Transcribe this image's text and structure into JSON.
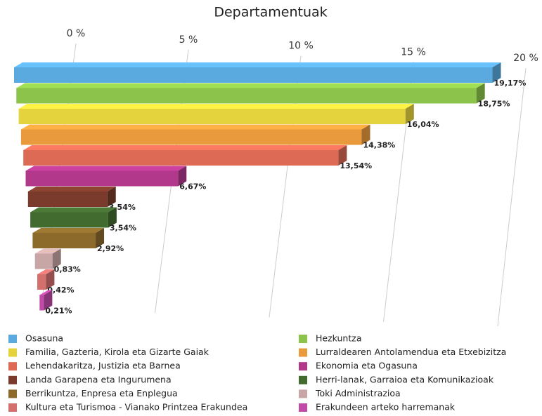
{
  "chart_data": {
    "type": "bar",
    "title": "Departamentuak",
    "xlim": [
      0,
      20
    ],
    "xticks": [
      {
        "value": 0,
        "label": "0 %"
      },
      {
        "value": 5,
        "label": "5 %"
      },
      {
        "value": 10,
        "label": "10 %"
      },
      {
        "value": 15,
        "label": "15 %"
      },
      {
        "value": 20,
        "label": "20 %"
      }
    ],
    "grid": true,
    "legend": "bottom",
    "series": [
      {
        "name": "Osasuna",
        "color": "#5aa9df",
        "values": [
          19.17
        ],
        "value_labels": [
          "19,17%"
        ]
      },
      {
        "name": "Hezkuntza",
        "color": "#8cc34a",
        "values": [
          18.75
        ],
        "value_labels": [
          "18,75%"
        ]
      },
      {
        "name": "Familia, Gazteria, Kirola eta Gizarte Gaiak",
        "color": "#e4d33c",
        "values": [
          16.04
        ],
        "value_labels": [
          "16,04%"
        ]
      },
      {
        "name": "Lurraldearen Antolamendua eta Etxebizitza",
        "color": "#e99a3c",
        "values": [
          14.38
        ],
        "value_labels": [
          "14,38%"
        ]
      },
      {
        "name": "Lehendakaritza, Justizia eta Barnea",
        "color": "#dc6a55",
        "values": [
          13.54
        ],
        "value_labels": [
          "13,54%"
        ]
      },
      {
        "name": "Ekonomia eta Ogasuna",
        "color": "#b1388b",
        "values": [
          6.67
        ],
        "value_labels": [
          "6,67%"
        ]
      },
      {
        "name": "Landa Garapena eta Ingurumena",
        "color": "#7b3b2c",
        "values": [
          3.54
        ],
        "value_labels": [
          "3,54%"
        ]
      },
      {
        "name": "Herri-lanak, Garraioa eta Komunikazioak",
        "color": "#426b30",
        "values": [
          3.54
        ],
        "value_labels": [
          "3,54%"
        ]
      },
      {
        "name": "Berrikuntza, Enpresa eta Enplegua",
        "color": "#8b6a2c",
        "values": [
          2.92
        ],
        "value_labels": [
          "2,92%"
        ]
      },
      {
        "name": "Toki Administrazioa",
        "color": "#c9a6a6",
        "values": [
          0.83
        ],
        "value_labels": [
          "0,83%"
        ]
      },
      {
        "name": "Kultura eta Turismoa - Vianako Printzea Erakundea",
        "color": "#d3706e",
        "values": [
          0.42
        ],
        "value_labels": [
          "0,42%"
        ]
      },
      {
        "name": "Erakundeen arteko harremanak",
        "color": "#c14aa9",
        "values": [
          0.21
        ],
        "value_labels": [
          "0,21%"
        ]
      }
    ]
  }
}
